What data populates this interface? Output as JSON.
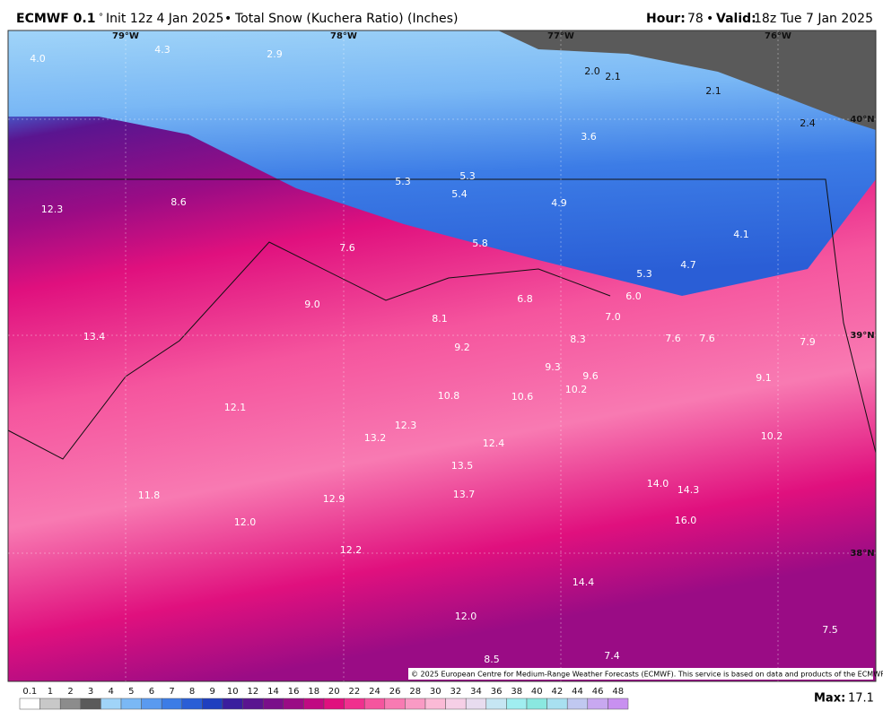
{
  "header": {
    "model": "ECMWF 0.1",
    "deg": "°",
    "init": "Init 12z 4 Jan 2025",
    "sep": "•",
    "product": "Total Snow (Kuchera Ratio) (Inches)",
    "hour_label": "Hour:",
    "hour": "78",
    "valid_label": "Valid:",
    "valid": "18z Tue 7 Jan 2025"
  },
  "map": {
    "lon_labels": [
      "79°W",
      "78°W",
      "77°W",
      "76°W"
    ],
    "lat_labels": [
      "40°N",
      "39°N",
      "38°N"
    ],
    "points": [
      "4.0",
      "4.3",
      "2.9",
      "2.0",
      "2.1",
      "2.1",
      "2.4",
      "3.6",
      "5.3",
      "5.3",
      "5.4",
      "4.9",
      "12.3",
      "8.6",
      "7.6",
      "5.8",
      "4.1",
      "4.7",
      "5.3",
      "6.0",
      "6.8",
      "9.0",
      "8.1",
      "7.0",
      "13.4",
      "8.3",
      "7.6",
      "7.6",
      "7.9",
      "9.2",
      "9.3",
      "9.6",
      "10.2",
      "9.1",
      "10.8",
      "10.6",
      "12.1",
      "12.3",
      "13.2",
      "12.4",
      "10.2",
      "13.5",
      "14.0",
      "14.3",
      "13.7",
      "11.8",
      "12.9",
      "12.0",
      "16.0",
      "12.2",
      "14.4",
      "12.0",
      "7.5",
      "8.5",
      "7.4"
    ],
    "credit": "© 2025 European Centre for Medium-Range Weather Forecasts (ECMWF). This service is based on data and products of the ECMWF."
  },
  "colorbar": {
    "labels": [
      "0.1",
      "1",
      "2",
      "3",
      "4",
      "5",
      "6",
      "7",
      "8",
      "9",
      "10",
      "12",
      "14",
      "16",
      "18",
      "20",
      "22",
      "24",
      "26",
      "28",
      "30",
      "32",
      "34",
      "36",
      "38",
      "40",
      "42",
      "44",
      "46",
      "48"
    ],
    "colors": [
      "#ffffff",
      "#c8c8c8",
      "#8c8c8c",
      "#5a5a5a",
      "#a0d4f8",
      "#7ab8f5",
      "#5a9af0",
      "#3c7ce6",
      "#2a5ed6",
      "#1f3fbf",
      "#3a1e9e",
      "#5a1590",
      "#7a0f8a",
      "#9a0c85",
      "#c00a82",
      "#e0107e",
      "#f0308e",
      "#f5559e",
      "#f87ab2",
      "#f99ac4",
      "#fbbad6",
      "#f6cfe6",
      "#e8dcef",
      "#c6e6f3",
      "#a0eef0",
      "#8ae8e0",
      "#a8e0f0",
      "#c0c8f0",
      "#c8a8f0",
      "#c890f0"
    ]
  },
  "footer": {
    "max_label": "Max:",
    "max": "17.1"
  }
}
